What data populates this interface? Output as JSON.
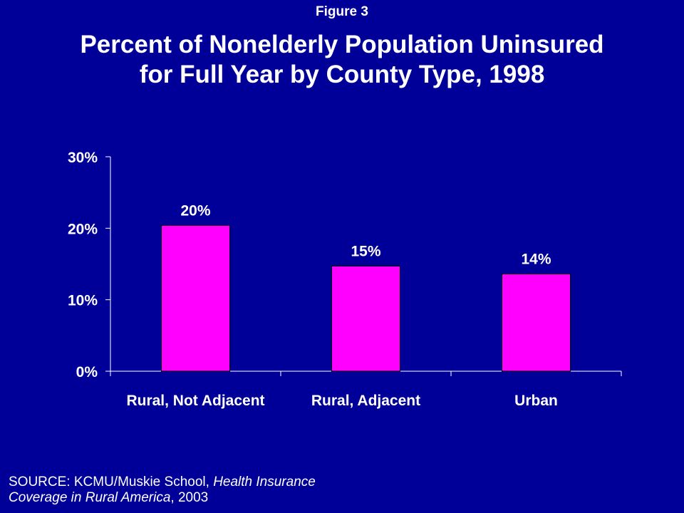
{
  "figure_label": "Figure 3",
  "title_lines": [
    "Percent of Nonelderly Population Uninsured",
    "for Full Year by County Type, 1998"
  ],
  "source": {
    "prefix": "SOURCE:  KCMU/Muskie School, ",
    "publication_part1": "Health Insurance",
    "publication_part2": "Coverage in Rural America",
    "suffix": ", 2003"
  },
  "colors": {
    "background": "#000099",
    "bar": "#ff00ff",
    "text": "#ffffff"
  },
  "chart_data": {
    "type": "bar",
    "title": "Percent of Nonelderly Population Uninsured for Full Year by County Type, 1998",
    "categories": [
      "Rural, Not Adjacent",
      "Rural, Adjacent",
      "Urban"
    ],
    "values": [
      20.4,
      14.7,
      13.6
    ],
    "data_labels": [
      "20%",
      "15%",
      "14%"
    ],
    "ylim": [
      0,
      30
    ],
    "yticks": [
      0,
      10,
      20,
      30
    ],
    "ytick_labels": [
      "0%",
      "10%",
      "20%",
      "30%"
    ],
    "xlabel": "",
    "ylabel": "",
    "grid": false,
    "legend": "none"
  }
}
